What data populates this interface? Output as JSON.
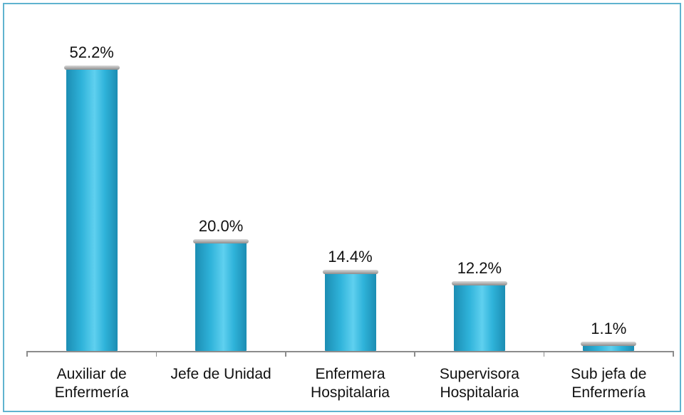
{
  "chart_data": {
    "type": "bar",
    "categories": [
      "Auxiliar de Enfermería",
      "Jefe de Unidad",
      "Enfermera Hospitalaria",
      "Supervisora Hospitalaria",
      "Sub jefa de Enfermería"
    ],
    "values": [
      52.2,
      20.0,
      14.4,
      12.2,
      1.1
    ],
    "value_labels": [
      "52.2%",
      "20.0%",
      "14.4%",
      "12.2%",
      "1.1%"
    ],
    "color": "#2fb3da"
  }
}
